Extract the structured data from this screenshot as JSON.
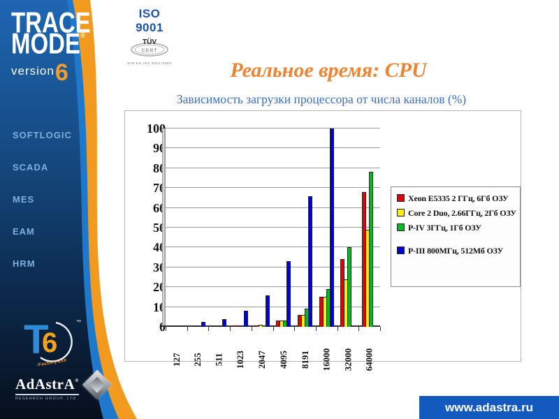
{
  "slide": {
    "title": "Реальное время: CPU",
    "subtitle": "Зависимость загрузки процессора от числа каналов (%)",
    "url": "www.adastra.ru"
  },
  "sidebar": {
    "logo": {
      "line1": "TRACE",
      "line2": "MODE",
      "reg": "®",
      "version_word": "version",
      "version_number": "6"
    },
    "items": [
      {
        "label": "SOFTLOGIC"
      },
      {
        "label": "SCADA"
      },
      {
        "label": "MES"
      },
      {
        "label": "EAM"
      },
      {
        "label": "HRM"
      }
    ],
    "t6": {
      "t": "T",
      "six": "6",
      "sub": "-Factory.exe",
      "tm": "™"
    },
    "adastra": {
      "name": "AdAstrA",
      "reg": "®",
      "subtext": "RESEARCH GROUP, LTD"
    }
  },
  "iso": {
    "title": "ISO 9001",
    "tuv_top": "TÜV",
    "tuv_bottom": "CERT",
    "din": "DIN EN ISO 9001:2000"
  },
  "colors": {
    "accent_orange": "#F29A1F",
    "sidebar_blue_top": "#1E66B2",
    "sidebar_navy_bottom": "#070F1C",
    "stripe_blue": "#1E78CC",
    "title_orange": "#EE8433",
    "subtitle_blue": "#3A6FC4",
    "url_bar_blue": "#1359BE",
    "menu_text": "#7CB0DE"
  },
  "chart_data": {
    "type": "bar",
    "title": "",
    "xlabel": "",
    "ylabel": "",
    "ylim": [
      0,
      100
    ],
    "ytick": 10,
    "grid": true,
    "legend_position": "right",
    "categories": [
      "127",
      "255",
      "511",
      "1023",
      "2047",
      "4095",
      "8191",
      "16000",
      "32000",
      "64000"
    ],
    "series": [
      {
        "name": "Xeon E5335 2 ГГц, 6Гб ОЗУ",
        "color": "#dd0505",
        "values": [
          0.3,
          0.4,
          0.5,
          0.6,
          0.8,
          3,
          6,
          15,
          34,
          68
        ]
      },
      {
        "name": "Core 2 Duo, 2.66ГГц, 2Гб ОЗУ",
        "color": "#ffee00",
        "values": [
          0.2,
          0.3,
          0.4,
          0.5,
          1.2,
          3,
          6,
          15,
          24,
          49
        ]
      },
      {
        "name": "P-IV 3ГГц, 1Гб ОЗУ",
        "color": "#00bb22",
        "values": [
          0.2,
          0.3,
          0.4,
          0.5,
          0.8,
          3,
          9,
          19,
          40,
          78
        ]
      },
      {
        "name": "P-III 800МГц, 512Мб ОЗУ",
        "color": "#0000d8",
        "values": [
          0.5,
          2.5,
          4,
          8,
          16,
          33,
          66,
          100,
          null,
          null
        ]
      }
    ]
  }
}
